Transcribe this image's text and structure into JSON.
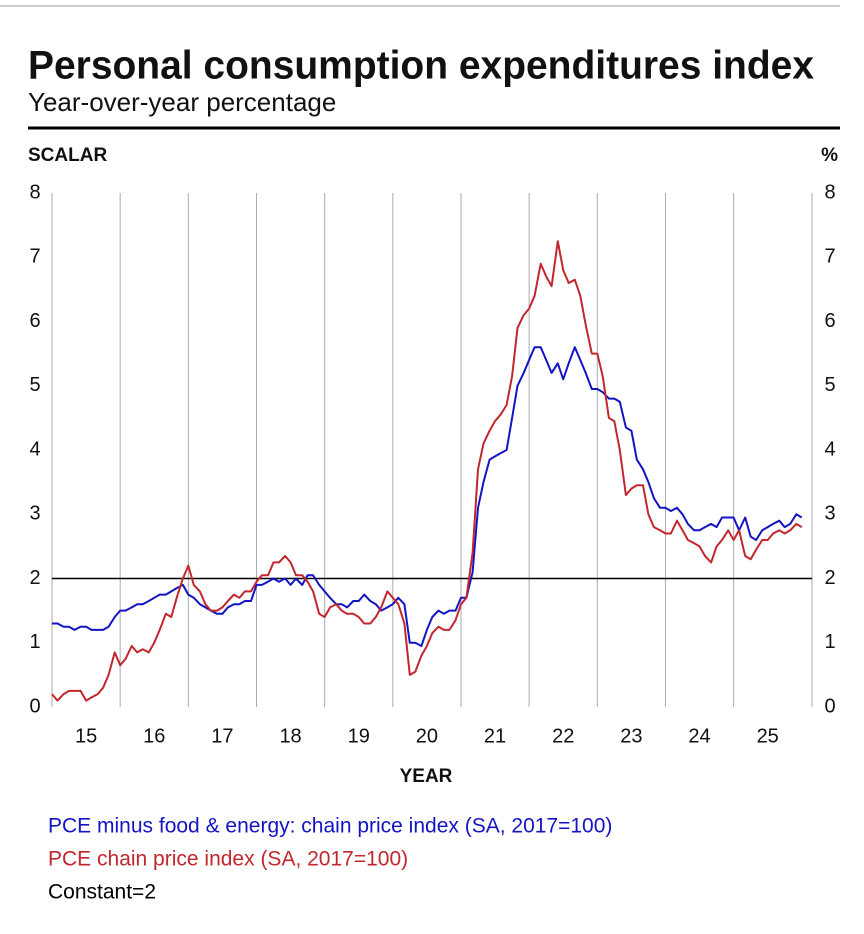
{
  "chart_data": {
    "type": "line",
    "title": "Personal consumption expenditures index",
    "subtitle": "Year-over-year percentage",
    "y_axis_label": "SCALAR",
    "y2_axis_label": "%",
    "x_axis_label": "YEAR",
    "xlim": [
      15,
      26.15
    ],
    "xticks": [
      15,
      16,
      17,
      18,
      19,
      20,
      21,
      22,
      23,
      24,
      25
    ],
    "ylim": [
      0,
      8
    ],
    "yticks": [
      0,
      1,
      2,
      3,
      4,
      5,
      6,
      7,
      8
    ],
    "y2lim": [
      0,
      8
    ],
    "y2ticks": [
      0,
      1,
      2,
      3,
      4,
      5,
      6,
      7,
      8
    ],
    "grid": true,
    "x": [
      15,
      15.08,
      15.17,
      15.25,
      15.33,
      15.42,
      15.5,
      15.58,
      15.67,
      15.75,
      15.83,
      15.92,
      16,
      16.08,
      16.17,
      16.25,
      16.33,
      16.42,
      16.5,
      16.58,
      16.67,
      16.75,
      16.83,
      16.92,
      17,
      17.08,
      17.17,
      17.25,
      17.33,
      17.42,
      17.5,
      17.58,
      17.67,
      17.75,
      17.83,
      17.92,
      18,
      18.08,
      18.17,
      18.25,
      18.33,
      18.42,
      18.5,
      18.58,
      18.67,
      18.75,
      18.83,
      18.92,
      19,
      19.08,
      19.17,
      19.25,
      19.33,
      19.42,
      19.5,
      19.58,
      19.67,
      19.75,
      19.83,
      19.92,
      20,
      20.08,
      20.17,
      20.25,
      20.33,
      20.42,
      20.5,
      20.58,
      20.67,
      20.75,
      20.83,
      20.92,
      21,
      21.08,
      21.17,
      21.25,
      21.33,
      21.42,
      21.5,
      21.58,
      21.67,
      21.75,
      21.83,
      21.92,
      22,
      22.08,
      22.17,
      22.25,
      22.33,
      22.42,
      22.5,
      22.58,
      22.67,
      22.75,
      22.83,
      22.92,
      23,
      23.08,
      23.17,
      23.25,
      23.33,
      23.42,
      23.5,
      23.58,
      23.67,
      23.75,
      23.83,
      23.92,
      24,
      24.08,
      24.17,
      24.25,
      24.33,
      24.42,
      24.5,
      24.58,
      24.67,
      24.75,
      24.83,
      24.92,
      25,
      25.08,
      25.17,
      25.25,
      25.33,
      25.42,
      25.5,
      25.58,
      25.67,
      25.75,
      25.83,
      25.92,
      26
    ],
    "series": [
      {
        "name": "PCE minus food & energy: chain price index (SA, 2017=100)",
        "color": "#1414c4",
        "values": [
          1.3,
          1.3,
          1.25,
          1.25,
          1.2,
          1.25,
          1.25,
          1.2,
          1.2,
          1.2,
          1.25,
          1.4,
          1.5,
          1.5,
          1.55,
          1.6,
          1.6,
          1.65,
          1.7,
          1.75,
          1.75,
          1.8,
          1.85,
          1.9,
          1.75,
          1.7,
          1.6,
          1.55,
          1.5,
          1.45,
          1.45,
          1.55,
          1.6,
          1.6,
          1.65,
          1.65,
          1.9,
          1.9,
          1.95,
          2.0,
          1.95,
          2.0,
          1.9,
          2.0,
          1.9,
          2.05,
          2.05,
          1.9,
          1.8,
          1.7,
          1.6,
          1.6,
          1.55,
          1.65,
          1.65,
          1.75,
          1.65,
          1.6,
          1.5,
          1.55,
          1.6,
          1.7,
          1.6,
          1.0,
          1.0,
          0.95,
          1.2,
          1.4,
          1.5,
          1.45,
          1.5,
          1.5,
          1.7,
          1.7,
          2.1,
          3.1,
          3.5,
          3.85,
          3.9,
          3.95,
          4.0,
          4.5,
          5.0,
          5.2,
          5.4,
          5.6,
          5.6,
          5.4,
          5.2,
          5.35,
          5.1,
          5.35,
          5.6,
          5.4,
          5.2,
          4.95,
          4.95,
          4.9,
          4.8,
          4.8,
          4.75,
          4.35,
          4.3,
          3.85,
          3.7,
          3.5,
          3.25,
          3.1,
          3.1,
          3.05,
          3.1,
          3.0,
          2.85,
          2.75,
          2.75,
          2.8,
          2.85,
          2.8,
          2.95,
          2.95,
          2.95,
          2.75,
          2.95,
          2.65,
          2.6,
          2.75,
          2.8,
          2.85,
          2.9,
          2.8,
          2.85,
          3.0,
          2.95
        ]
      },
      {
        "name": "PCE chain price index (SA, 2017=100)",
        "color": "#c1272d",
        "values": [
          0.2,
          0.1,
          0.2,
          0.25,
          0.25,
          0.25,
          0.1,
          0.15,
          0.2,
          0.3,
          0.5,
          0.85,
          0.65,
          0.75,
          0.95,
          0.85,
          0.9,
          0.85,
          1.0,
          1.2,
          1.45,
          1.4,
          1.7,
          2.0,
          2.2,
          1.9,
          1.8,
          1.6,
          1.5,
          1.5,
          1.55,
          1.65,
          1.75,
          1.7,
          1.8,
          1.8,
          1.95,
          2.05,
          2.05,
          2.25,
          2.25,
          2.35,
          2.25,
          2.05,
          2.05,
          1.95,
          1.8,
          1.45,
          1.4,
          1.55,
          1.6,
          1.5,
          1.45,
          1.45,
          1.4,
          1.3,
          1.3,
          1.4,
          1.55,
          1.8,
          1.7,
          1.6,
          1.3,
          0.5,
          0.55,
          0.8,
          0.95,
          1.15,
          1.25,
          1.2,
          1.2,
          1.35,
          1.6,
          1.7,
          2.4,
          3.7,
          4.1,
          4.3,
          4.45,
          4.55,
          4.7,
          5.15,
          5.9,
          6.1,
          6.2,
          6.4,
          6.9,
          6.7,
          6.55,
          7.25,
          6.8,
          6.6,
          6.65,
          6.4,
          5.95,
          5.5,
          5.5,
          5.15,
          4.5,
          4.45,
          4.0,
          3.3,
          3.4,
          3.45,
          3.45,
          3.0,
          2.8,
          2.75,
          2.7,
          2.7,
          2.9,
          2.75,
          2.6,
          2.55,
          2.5,
          2.35,
          2.25,
          2.5,
          2.6,
          2.75,
          2.6,
          2.75,
          2.35,
          2.3,
          2.45,
          2.6,
          2.6,
          2.7,
          2.75,
          2.7,
          2.75,
          2.85,
          2.8
        ]
      },
      {
        "name": "Constant=2",
        "color": "#000000",
        "x": [
          15,
          26.15
        ],
        "values": [
          2,
          2
        ]
      }
    ]
  }
}
